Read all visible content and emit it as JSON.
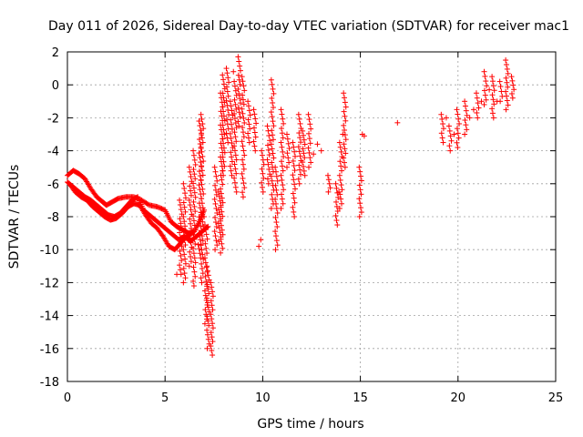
{
  "chart_data": {
    "type": "scatter",
    "title": "Day 011 of 2026, Sidereal Day-to-day VTEC variation (SDTVAR) for receiver mac1",
    "xlabel": "GPS time / hours",
    "ylabel": "SDTVAR / TECUs",
    "xlim": [
      0,
      25
    ],
    "ylim": [
      -18,
      2
    ],
    "xticks": [
      0,
      5,
      10,
      15,
      20,
      25
    ],
    "yticks": [
      -18,
      -16,
      -14,
      -12,
      -10,
      -8,
      -6,
      -4,
      -2,
      0,
      2
    ],
    "grid": true,
    "marker": "+",
    "color": "#ff0000",
    "series": [
      {
        "name": "SDTVAR",
        "trace_a": {
          "x": [
            0.0,
            0.3,
            0.6,
            0.9,
            1.2,
            1.5,
            1.8,
            2.0,
            2.3,
            2.6,
            3.0,
            3.4,
            3.8,
            4.2,
            4.6,
            5.0,
            5.3,
            5.6,
            5.9,
            6.2,
            6.5,
            6.8,
            7.0
          ],
          "y": [
            -5.5,
            -5.2,
            -5.4,
            -5.7,
            -6.3,
            -6.8,
            -7.1,
            -7.3,
            -7.1,
            -6.9,
            -6.8,
            -6.8,
            -7.0,
            -7.3,
            -7.4,
            -7.6,
            -8.3,
            -8.6,
            -8.8,
            -9.0,
            -8.9,
            -8.2,
            -7.6
          ]
        },
        "trace_b": {
          "x": [
            0.0,
            0.3,
            0.6,
            0.9,
            1.2,
            1.5,
            1.8,
            2.1,
            2.4,
            2.7,
            3.0,
            3.3,
            3.6,
            3.9,
            4.2,
            4.5,
            4.8,
            5.1,
            5.4,
            5.7,
            6.0,
            6.3,
            6.6,
            6.9,
            7.2
          ],
          "y": [
            -5.9,
            -6.2,
            -6.5,
            -6.8,
            -7.0,
            -7.3,
            -7.6,
            -7.9,
            -8.0,
            -7.8,
            -7.4,
            -7.0,
            -6.8,
            -7.6,
            -7.9,
            -8.2,
            -8.5,
            -8.8,
            -9.1,
            -9.4,
            -9.2,
            -9.5,
            -9.2,
            -8.9,
            -8.6
          ]
        },
        "trace_c": {
          "x": [
            0.1,
            0.4,
            0.7,
            1.0,
            1.3,
            1.6,
            1.9,
            2.2,
            2.5,
            2.8,
            3.1,
            3.4,
            3.7,
            4.0,
            4.3,
            4.6,
            4.9,
            5.2,
            5.5,
            5.8,
            6.1,
            6.4
          ],
          "y": [
            -6.0,
            -6.5,
            -6.8,
            -7.0,
            -7.4,
            -7.7,
            -8.0,
            -8.2,
            -8.1,
            -7.8,
            -7.4,
            -7.2,
            -7.3,
            -7.9,
            -8.4,
            -8.7,
            -9.2,
            -9.8,
            -10.0,
            -9.6,
            -9.2,
            -9.0
          ]
        },
        "segments": [
          {
            "x": 6.5,
            "y0": -4.0,
            "y1": -12.2
          },
          {
            "x": 6.3,
            "y0": -5.0,
            "y1": -11.0
          },
          {
            "x": 6.0,
            "y0": -6.0,
            "y1": -12.0
          },
          {
            "x": 5.8,
            "y0": -7.0,
            "y1": -11.5
          },
          {
            "x": 6.9,
            "y0": -1.8,
            "y1": -12.0
          },
          {
            "x": 6.8,
            "y0": -2.2,
            "y1": -10.5
          },
          {
            "x": 7.1,
            "y0": -8.5,
            "y1": -14.5
          },
          {
            "x": 7.2,
            "y0": -11.0,
            "y1": -16.0
          },
          {
            "x": 7.4,
            "y0": -12.0,
            "y1": -16.4
          },
          {
            "x": 7.6,
            "y0": -5.0,
            "y1": -10.0
          },
          {
            "x": 7.8,
            "y0": -6.5,
            "y1": -9.5
          },
          {
            "x": 7.9,
            "y0": -0.5,
            "y1": -10.2
          },
          {
            "x": 8.0,
            "y0": 0.6,
            "y1": -5.5
          },
          {
            "x": 8.2,
            "y0": 1.0,
            "y1": -3.5
          },
          {
            "x": 8.4,
            "y0": -1.0,
            "y1": -5.5
          },
          {
            "x": 8.6,
            "y0": 0.2,
            "y1": -6.5
          },
          {
            "x": 8.8,
            "y0": 1.7,
            "y1": -2.5
          },
          {
            "x": 9.0,
            "y0": 0.5,
            "y1": -6.8
          },
          {
            "x": 9.3,
            "y0": -1.0,
            "y1": -3.5
          },
          {
            "x": 9.6,
            "y0": -1.5,
            "y1": -4.0
          },
          {
            "x": 10.0,
            "y0": -4.0,
            "y1": -6.5
          },
          {
            "x": 10.3,
            "y0": -2.5,
            "y1": -6.0
          },
          {
            "x": 10.5,
            "y0": 0.3,
            "y1": -7.5
          },
          {
            "x": 10.7,
            "y0": -5.0,
            "y1": -10.0
          },
          {
            "x": 11.0,
            "y0": -1.5,
            "y1": -7.5
          },
          {
            "x": 11.3,
            "y0": -3.0,
            "y1": -5.0
          },
          {
            "x": 11.6,
            "y0": -3.5,
            "y1": -8.0
          },
          {
            "x": 11.9,
            "y0": -1.8,
            "y1": -6.0
          },
          {
            "x": 12.1,
            "y0": -2.8,
            "y1": -5.5
          },
          {
            "x": 12.4,
            "y0": -1.8,
            "y1": -5.0
          },
          {
            "x": 13.4,
            "y0": -5.5,
            "y1": -6.5
          },
          {
            "x": 13.8,
            "y0": -6.0,
            "y1": -8.5
          },
          {
            "x": 14.0,
            "y0": -3.5,
            "y1": -7.5
          },
          {
            "x": 14.2,
            "y0": -0.5,
            "y1": -5.0
          },
          {
            "x": 15.0,
            "y0": -5.0,
            "y1": -8.0
          },
          {
            "x": 19.2,
            "y0": -1.8,
            "y1": -3.5
          },
          {
            "x": 19.6,
            "y0": -2.5,
            "y1": -4.0
          },
          {
            "x": 20.0,
            "y0": -1.5,
            "y1": -3.8
          },
          {
            "x": 20.4,
            "y0": -1.0,
            "y1": -3.0
          },
          {
            "x": 21.0,
            "y0": -0.5,
            "y1": -2.0
          },
          {
            "x": 21.4,
            "y0": 0.8,
            "y1": -1.2
          },
          {
            "x": 21.8,
            "y0": 0.5,
            "y1": -2.0
          },
          {
            "x": 22.2,
            "y0": 0.2,
            "y1": -1.0
          },
          {
            "x": 22.5,
            "y0": 1.5,
            "y1": -1.5
          },
          {
            "x": 22.8,
            "y0": 0.5,
            "y1": -0.8
          }
        ],
        "scattered": [
          [
            15.1,
            -3.0
          ],
          [
            15.2,
            -3.1
          ],
          [
            16.9,
            -2.3
          ],
          [
            13.0,
            -4.0
          ],
          [
            12.6,
            -4.2
          ],
          [
            9.8,
            -9.8
          ],
          [
            9.9,
            -9.4
          ],
          [
            20.6,
            -2.0
          ],
          [
            20.8,
            -1.5
          ],
          [
            21.2,
            -1.0
          ],
          [
            21.6,
            -0.3
          ],
          [
            22.0,
            -1.0
          ],
          [
            19.4,
            -2.0
          ],
          [
            19.8,
            -3.0
          ],
          [
            14.1,
            -3.0
          ],
          [
            13.9,
            -6.5
          ],
          [
            12.8,
            -3.6
          ],
          [
            8.5,
            0.8
          ],
          [
            7.0,
            -8.0
          ],
          [
            6.7,
            -9.7
          ],
          [
            5.6,
            -11.5
          ]
        ]
      }
    ]
  }
}
